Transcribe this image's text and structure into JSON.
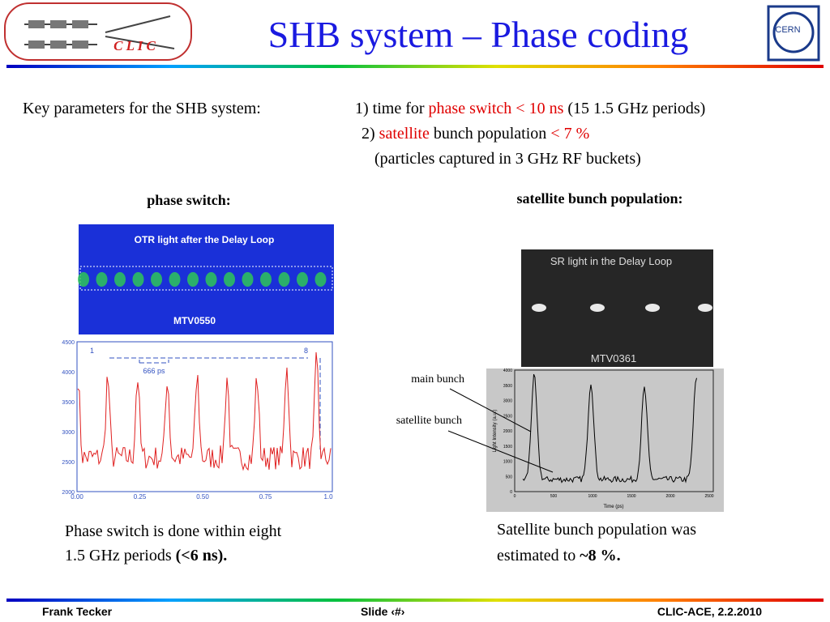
{
  "header": {
    "title": "SHB system – Phase coding",
    "logo_left": "C L I C",
    "logo_right": "CERN"
  },
  "key_parameters": {
    "label": "Key parameters for the SHB system:",
    "line1": [
      "1) time for ",
      "phase switch < 10 ns",
      " (15 1.5 GHz periods)"
    ],
    "line2": [
      "2) ",
      "satellite",
      " bunch population ",
      "< 7 %"
    ],
    "line3": "(particles captured in 3 GHz RF buckets)"
  },
  "left": {
    "heading": "phase switch:",
    "image_title": "OTR light after the Delay Loop",
    "image_label": "MTV0550",
    "plot": {
      "yticks": [
        "4500",
        "4000",
        "3500",
        "3000",
        "2500",
        "2000"
      ],
      "xticks": [
        "0.00",
        "0.25",
        "0.50",
        "0.75",
        "1.0"
      ],
      "annotations": [
        "1",
        "8",
        "666 ps"
      ]
    },
    "caption": [
      "Phase switch is done within eight",
      "1.5 GHz periods ",
      "(<6 ns)."
    ]
  },
  "right": {
    "heading": "satellite bunch population:",
    "image_title": "SR light in the Delay Loop",
    "image_label": "MTV0361",
    "plot": {
      "yticks": [
        "4000",
        "3500",
        "3000",
        "2500",
        "2000",
        "1500",
        "1000",
        "500",
        "0"
      ],
      "xticks": [
        "0",
        "500",
        "1000",
        "1500",
        "2000",
        "2500"
      ],
      "ylabel": "Light Intensity (a.u.)",
      "xlabel": "Time (ps)"
    },
    "annotations": [
      "main bunch",
      "satellite bunch"
    ],
    "caption": [
      "Satellite bunch population was",
      "estimated to ",
      "~8 %."
    ]
  },
  "footer": {
    "author": "Frank Tecker",
    "slide": "Slide ‹#›",
    "event": "CLIC-ACE, 2.2.2010"
  }
}
